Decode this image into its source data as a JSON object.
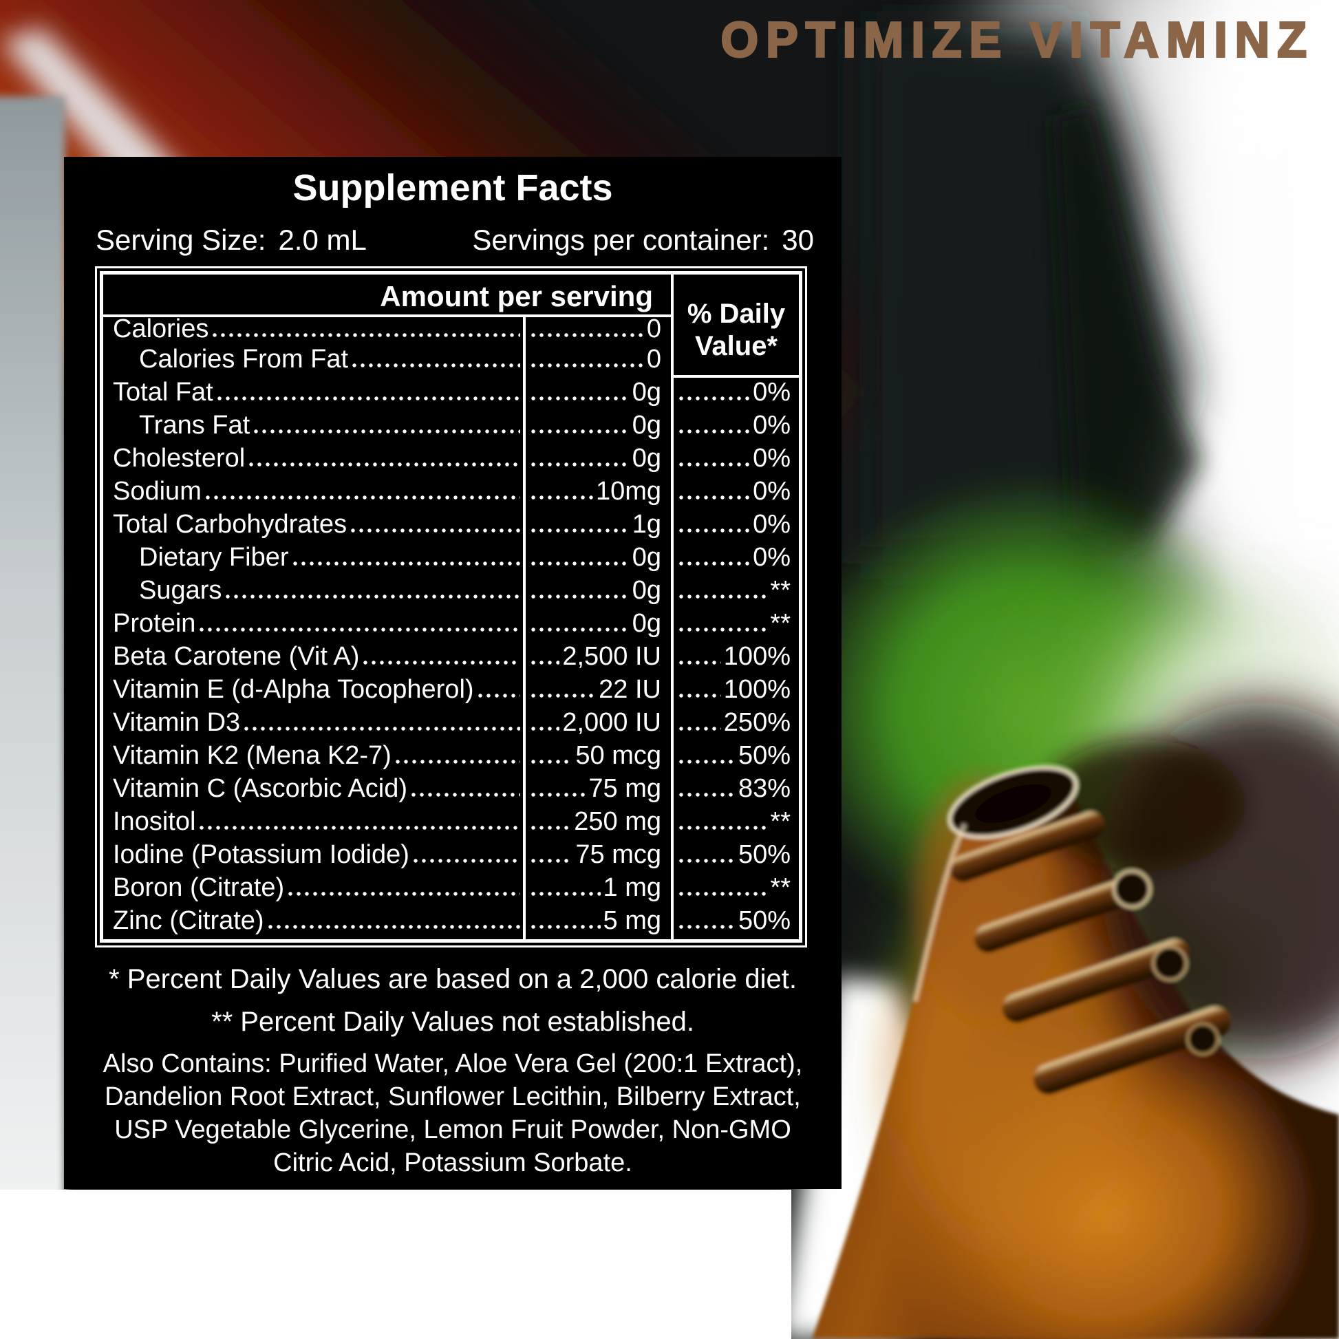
{
  "brand": {
    "title": "OPTIMIZE VITAMINZ",
    "color": "#8a6548"
  },
  "panel": {
    "title": "Supplement Facts",
    "serving_size_label": "Serving Size:",
    "serving_size_value": "2.0 mL",
    "servings_label": "Servings per container:",
    "servings_value": "30",
    "table": {
      "amount_header": "Amount per serving",
      "dv_header": [
        "% Daily",
        "Value*"
      ],
      "rows": [
        {
          "label": "Calories",
          "amount": "0",
          "daily_value": "",
          "indent": false
        },
        {
          "label": "Calories From Fat",
          "amount": "0",
          "daily_value": "",
          "indent": true
        },
        {
          "label": "Total Fat",
          "amount": "0g",
          "daily_value": "0%",
          "indent": false
        },
        {
          "label": "Trans Fat",
          "amount": "0g",
          "daily_value": "0%",
          "indent": true
        },
        {
          "label": "Cholesterol",
          "amount": "0g",
          "daily_value": "0%",
          "indent": false
        },
        {
          "label": "Sodium",
          "amount": "10mg",
          "daily_value": "0%",
          "indent": false
        },
        {
          "label": "Total Carbohydrates",
          "amount": "1g",
          "daily_value": "0%",
          "indent": false
        },
        {
          "label": "Dietary Fiber",
          "amount": "0g",
          "daily_value": "0%",
          "indent": true
        },
        {
          "label": "Sugars",
          "amount": "0g",
          "daily_value": "**",
          "indent": true
        },
        {
          "label": "Protein",
          "amount": "0g",
          "daily_value": "**",
          "indent": false
        },
        {
          "label": "Beta Carotene (Vit A)",
          "amount": "2,500 IU",
          "daily_value": "100%",
          "indent": false
        },
        {
          "label": "Vitamin E (d-Alpha Tocopherol)",
          "amount": "22 IU",
          "daily_value": "100%",
          "indent": false
        },
        {
          "label": "Vitamin D3",
          "amount": "2,000 IU",
          "daily_value": "250%",
          "indent": false
        },
        {
          "label": "Vitamin K2 (Mena K2-7)",
          "amount": "50 mcg",
          "daily_value": "50%",
          "indent": false
        },
        {
          "label": "Vitamin C (Ascorbic Acid)",
          "amount": "75 mg",
          "daily_value": "83%",
          "indent": false
        },
        {
          "label": "Inositol",
          "amount": "250 mg",
          "daily_value": "**",
          "indent": false
        },
        {
          "label": "Iodine (Potassium Iodide)",
          "amount": "75 mcg",
          "daily_value": "50%",
          "indent": false
        },
        {
          "label": "Boron (Citrate)",
          "amount": "1 mg",
          "daily_value": "**",
          "indent": false
        },
        {
          "label": "Zinc (Citrate)",
          "amount": "5 mg",
          "daily_value": "50%",
          "indent": false
        }
      ]
    },
    "footnotes": [
      "* Percent Daily Values are based on a 2,000 calorie diet.",
      "** Percent Daily Values not established."
    ],
    "also_contains": [
      "Also Contains: Purified Water, Aloe Vera Gel (200:1 Extract),",
      "Dandelion Root Extract, Sunflower Lecithin, Bilberry Extract,",
      "USP Vegetable Glycerine, Lemon Fruit Powder, Non-GMO",
      "Citric Acid, Potassium Sorbate."
    ]
  },
  "photo": {
    "accent_red": "#8e2410",
    "accent_orange_edge": "#d96c14",
    "accent_green": "#3f8c1d",
    "accent_amber": "#b06212",
    "highlight_white": "#ffffff"
  }
}
